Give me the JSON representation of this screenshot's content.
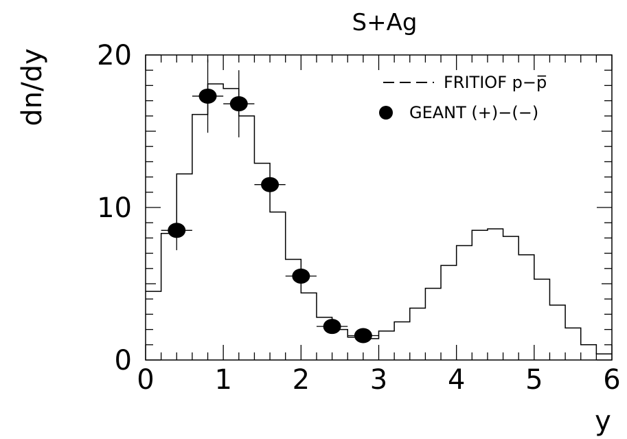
{
  "chart_data": {
    "type": "line",
    "title": "S+Ag",
    "xlabel": "y",
    "ylabel": "dn/dy",
    "xlim": [
      0,
      6
    ],
    "ylim": [
      0,
      20
    ],
    "x_ticks": [
      "0",
      "1",
      "2",
      "3",
      "4",
      "5",
      "6"
    ],
    "y_ticks": [
      "0",
      "10",
      "20"
    ],
    "grid": false,
    "legend_position": "top-right",
    "legend": {
      "hist_label": "FRITIOF p−p̅",
      "points_label": "GEANT (+)−(−)"
    },
    "series": [
      {
        "name": "FRITIOF p−p̅",
        "style": "step-histogram",
        "bin_edges": [
          0,
          0.2,
          0.4,
          0.6,
          0.8,
          1.0,
          1.2,
          1.4,
          1.6,
          1.8,
          2.0,
          2.2,
          2.4,
          2.6,
          2.8,
          3.0,
          3.2,
          3.4,
          3.6,
          3.8,
          4.0,
          4.2,
          4.4,
          4.6,
          4.8,
          5.0,
          5.2,
          5.4,
          5.6,
          5.8,
          6.0
        ],
        "values": [
          4.5,
          8.3,
          12.2,
          16.1,
          18.1,
          17.8,
          16.0,
          12.9,
          9.7,
          6.6,
          4.4,
          2.8,
          2.0,
          1.5,
          1.4,
          1.9,
          2.5,
          3.4,
          4.7,
          6.2,
          7.5,
          8.5,
          8.6,
          8.1,
          6.9,
          5.3,
          3.6,
          2.1,
          1.0,
          0.4
        ]
      },
      {
        "name": "GEANT (+)−(−)",
        "style": "points-with-errors",
        "points": [
          {
            "x": 0.4,
            "y": 8.5,
            "xerr": 0.2,
            "yerr": 1.3
          },
          {
            "x": 0.8,
            "y": 17.3,
            "xerr": 0.2,
            "yerr": 2.4
          },
          {
            "x": 1.2,
            "y": 16.8,
            "xerr": 0.2,
            "yerr": 2.2
          },
          {
            "x": 1.6,
            "y": 11.5,
            "xerr": 0.2,
            "yerr": 0.5
          },
          {
            "x": 2.0,
            "y": 5.5,
            "xerr": 0.2,
            "yerr": 0.3
          },
          {
            "x": 2.4,
            "y": 2.2,
            "xerr": 0.2,
            "yerr": 0.2
          },
          {
            "x": 2.8,
            "y": 1.6,
            "xerr": 0.2,
            "yerr": 0.2
          }
        ]
      }
    ]
  }
}
